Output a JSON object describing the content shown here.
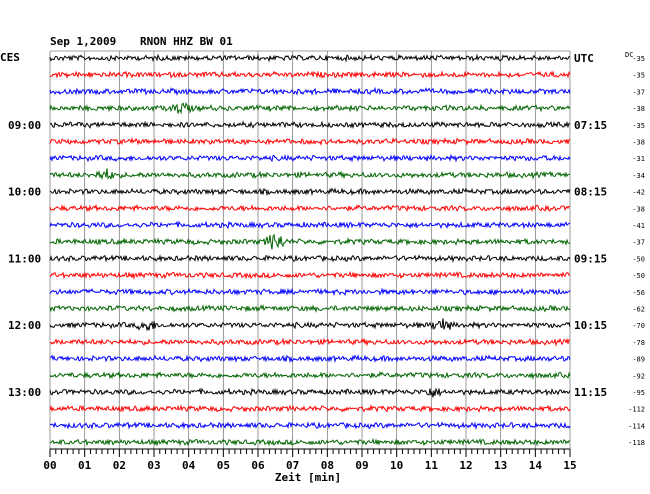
{
  "header": {
    "date": "Sep 1,2009",
    "station": "RNON HHZ BW 01",
    "left_zone": "CES",
    "right_zone": "UTC",
    "dc_label": "DC"
  },
  "chart_data": {
    "type": "line",
    "title": "Sep 1,2009   RNON HHZ BW 01",
    "xlabel": "Zeit [min]",
    "xlim": [
      0,
      15
    ],
    "x_ticks": [
      "00",
      "01",
      "02",
      "03",
      "04",
      "05",
      "06",
      "07",
      "08",
      "09",
      "10",
      "11",
      "12",
      "13",
      "14",
      "15"
    ],
    "grid": true,
    "trace_colors": [
      "#000000",
      "#ff0000",
      "#0000ff",
      "#006400"
    ],
    "left_time_labels": [
      {
        "row": 4,
        "label": "09:00"
      },
      {
        "row": 8,
        "label": "10:00"
      },
      {
        "row": 12,
        "label": "11:00"
      },
      {
        "row": 16,
        "label": "12:00"
      },
      {
        "row": 20,
        "label": "13:00"
      }
    ],
    "right_time_labels": [
      {
        "row": 0,
        "label": "UTC"
      },
      {
        "row": 4,
        "label": "07:15"
      },
      {
        "row": 8,
        "label": "08:15"
      },
      {
        "row": 12,
        "label": "09:15"
      },
      {
        "row": 16,
        "label": "10:15"
      },
      {
        "row": 20,
        "label": "11:15"
      }
    ],
    "dc_offsets": [
      "-35",
      "-35",
      "-37",
      "-38",
      "-35",
      "-38",
      "-31",
      "-34",
      "-42",
      "-38",
      "-41",
      "-37",
      "-50",
      "-50",
      "-56",
      "-62",
      "-70",
      "-78",
      "-89",
      "-92",
      "-95",
      "-112",
      "-114",
      "-118"
    ],
    "events": [
      {
        "row": 3,
        "minute": 3.8,
        "amp": 5
      },
      {
        "row": 7,
        "minute": 1.6,
        "amp": 5
      },
      {
        "row": 11,
        "minute": 6.5,
        "amp": 9
      },
      {
        "row": 16,
        "minute": 2.8,
        "amp": 5
      },
      {
        "row": 16,
        "minute": 11.3,
        "amp": 6
      },
      {
        "row": 20,
        "minute": 11.0,
        "amp": 4
      }
    ]
  }
}
